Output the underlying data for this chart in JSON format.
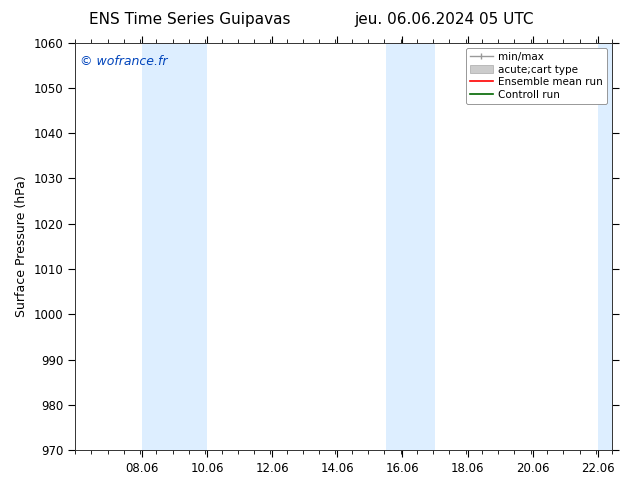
{
  "title_left": "ENS Time Series Guipavas",
  "title_right": "jeu. 06.06.2024 05 UTC",
  "ylabel": "Surface Pressure (hPa)",
  "ylim": [
    970,
    1060
  ],
  "yticks": [
    970,
    980,
    990,
    1000,
    1010,
    1020,
    1030,
    1040,
    1050,
    1060
  ],
  "xlim": [
    6.0,
    22.5
  ],
  "xticks": [
    8.06,
    10.06,
    12.06,
    14.06,
    16.06,
    18.06,
    20.06,
    22.06
  ],
  "xtick_labels": [
    "08.06",
    "10.06",
    "12.06",
    "14.06",
    "16.06",
    "18.06",
    "20.06",
    "22.06"
  ],
  "watermark": "© wofrance.fr",
  "watermark_color": "#0044bb",
  "background_color": "#ffffff",
  "plot_bg_color": "#ffffff",
  "shaded_regions": [
    {
      "xmin": 8.06,
      "xmax": 10.06,
      "color": "#ddeeff"
    },
    {
      "xmin": 15.56,
      "xmax": 17.06,
      "color": "#ddeeff"
    },
    {
      "xmin": 22.06,
      "xmax": 22.5,
      "color": "#ddeeff"
    }
  ],
  "title_fontsize": 11,
  "tick_fontsize": 8.5,
  "label_fontsize": 9,
  "watermark_fontsize": 9,
  "legend_fontsize": 7.5
}
